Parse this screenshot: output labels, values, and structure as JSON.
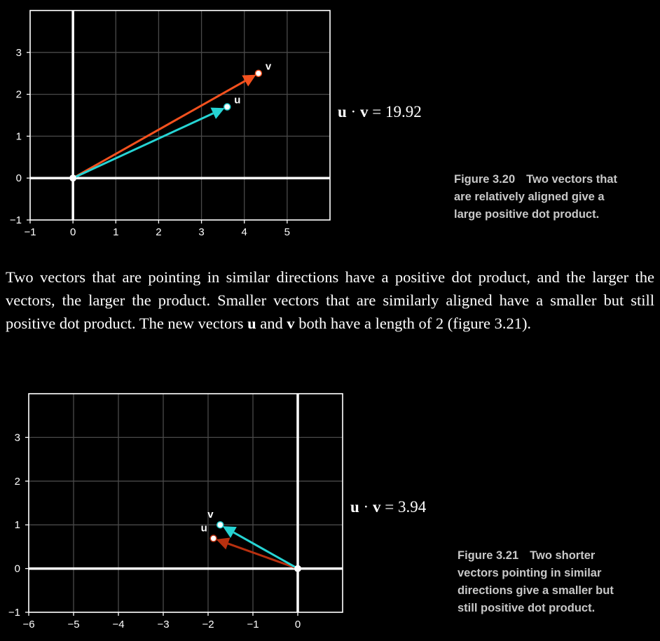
{
  "figures": [
    {
      "equation": {
        "u": "u",
        "dot": "·",
        "v": "v",
        "eq": "=",
        "value": "19.92"
      },
      "caption": {
        "number": "Figure 3.20",
        "text": [
          "Two vectors that",
          "are relatively aligned give a",
          "large positive dot product."
        ]
      }
    },
    {
      "equation": {
        "u": "u",
        "dot": "·",
        "v": "v",
        "eq": "=",
        "value": "3.94"
      },
      "caption": {
        "number": "Figure 3.21",
        "text": [
          "Two shorter",
          "vectors pointing in similar",
          "directions give a smaller but",
          "still positive dot product."
        ]
      }
    }
  ],
  "paragraph": {
    "part1": "Two vectors that are pointing in similar directions have a positive dot product, and the larger the vectors, the larger the product. Smaller vectors that are similarly aligned have a smaller but still positive dot product. The new vectors ",
    "u": "u",
    "and": " and ",
    "v": "v",
    "part2": " both have a length of 2 (figure 3.21)."
  },
  "chart_data": [
    {
      "type": "scatter",
      "xlim": [
        -1,
        6
      ],
      "ylim": [
        -1,
        4
      ],
      "xticks": [
        -1,
        0,
        1,
        2,
        3,
        4,
        5
      ],
      "yticks": [
        -1,
        0,
        1,
        2,
        3
      ],
      "xtick_labels": [
        "−1",
        "0",
        "1",
        "2",
        "3",
        "4",
        "5"
      ],
      "ytick_labels": [
        "−1",
        "0",
        "1",
        "2",
        "3"
      ],
      "grid": true,
      "vectors": [
        {
          "name": "v",
          "x": 4.33,
          "y": 2.5,
          "color": "#f4511e"
        },
        {
          "name": "u",
          "x": 3.6,
          "y": 1.7,
          "color": "#26d4d4"
        }
      ]
    },
    {
      "type": "scatter",
      "xlim": [
        -6,
        1
      ],
      "ylim": [
        -1,
        4
      ],
      "xticks": [
        -6,
        -5,
        -4,
        -3,
        -2,
        -1,
        0
      ],
      "yticks": [
        -1,
        0,
        1,
        2,
        3
      ],
      "xtick_labels": [
        "−6",
        "−5",
        "−4",
        "−3",
        "−2",
        "−1",
        "0"
      ],
      "ytick_labels": [
        "−1",
        "0",
        "1",
        "2",
        "3"
      ],
      "grid": true,
      "vectors": [
        {
          "name": "u",
          "x": -1.88,
          "y": 0.69,
          "color": "#b8300f"
        },
        {
          "name": "v",
          "x": -1.73,
          "y": 1.0,
          "color": "#26d4d4"
        }
      ]
    }
  ]
}
